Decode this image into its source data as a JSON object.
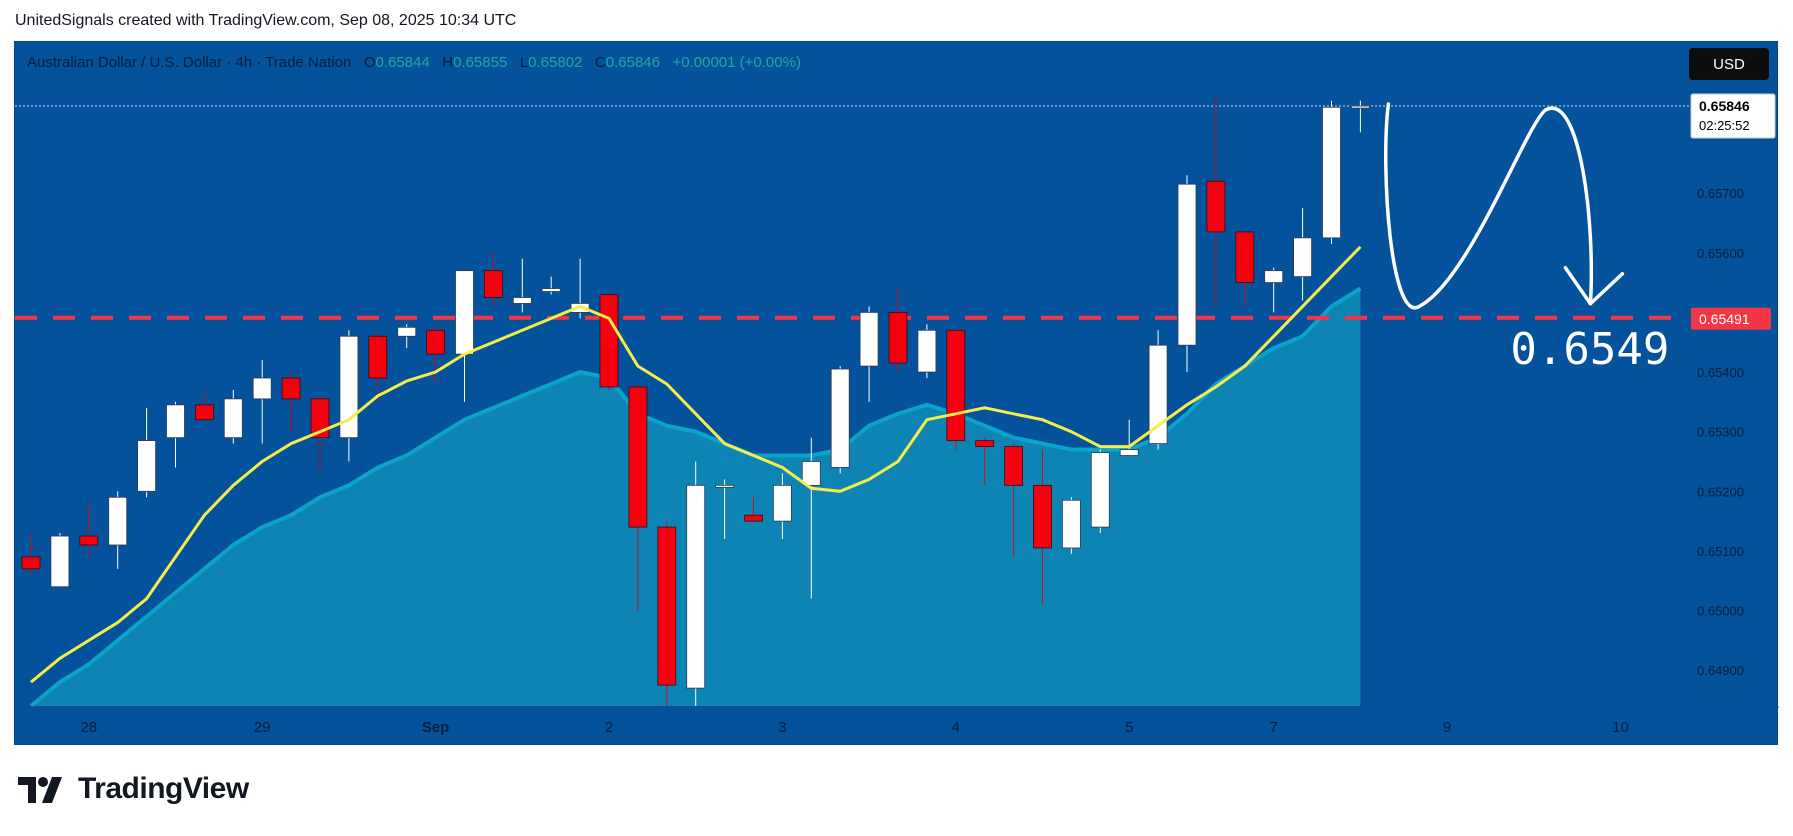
{
  "caption": "UnitedSignals created with TradingView.com, Sep 08, 2025 10:34 UTC",
  "brand": {
    "name": "TradingView",
    "logo_icon": "tradingview-logo-icon"
  },
  "legend": {
    "symbol": "Australian Dollar / U.S. Dollar · 4h · Trade Nation",
    "o_label": "O",
    "o": "0.65844",
    "h_label": "H",
    "h": "0.65855",
    "l_label": "L",
    "l": "0.65802",
    "c_label": "C",
    "c": "0.65846",
    "change": "+0.00001 (+0.00%)"
  },
  "currency": "USD",
  "colors": {
    "background": "#04529c",
    "bull": "#ffffff",
    "bear": "#f5000e",
    "ma_fast": "#f4ee4a",
    "ma_slow_area": "#0aa3c9",
    "level_line": "#f23645"
  },
  "chart_data": {
    "type": "candlestick",
    "timeframe": "4h",
    "y_axis": {
      "range": [
        0.6484,
        0.6594
      ],
      "ticks": [
        "0.65700",
        "0.65600",
        "0.65400",
        "0.65300",
        "0.65200",
        "0.65100",
        "0.65000",
        "0.64900"
      ]
    },
    "x_axis": {
      "labels": [
        {
          "label": "28",
          "index": 2
        },
        {
          "label": "29",
          "index": 8
        },
        {
          "label": "Sep",
          "index": 14
        },
        {
          "label": "2",
          "index": 20
        },
        {
          "label": "3",
          "index": 26
        },
        {
          "label": "4",
          "index": 32
        },
        {
          "label": "5",
          "index": 38
        },
        {
          "label": "7",
          "index": 43
        },
        {
          "label": "9",
          "index": 49
        },
        {
          "label": "10",
          "index": 55
        }
      ]
    },
    "candles": [
      {
        "o": 0.6509,
        "h": 0.6513,
        "l": 0.6506,
        "c": 0.6507
      },
      {
        "o": 0.6504,
        "h": 0.6513,
        "l": 0.6504,
        "c": 0.65125
      },
      {
        "o": 0.65125,
        "h": 0.6518,
        "l": 0.6509,
        "c": 0.6511
      },
      {
        "o": 0.6511,
        "h": 0.652,
        "l": 0.6507,
        "c": 0.6519
      },
      {
        "o": 0.652,
        "h": 0.6534,
        "l": 0.6519,
        "c": 0.65285
      },
      {
        "o": 0.6529,
        "h": 0.6535,
        "l": 0.6524,
        "c": 0.65345
      },
      {
        "o": 0.65345,
        "h": 0.6537,
        "l": 0.6532,
        "c": 0.6532
      },
      {
        "o": 0.6529,
        "h": 0.6537,
        "l": 0.6528,
        "c": 0.65355
      },
      {
        "o": 0.65355,
        "h": 0.6542,
        "l": 0.6528,
        "c": 0.6539
      },
      {
        "o": 0.6539,
        "h": 0.654,
        "l": 0.653,
        "c": 0.65355
      },
      {
        "o": 0.65355,
        "h": 0.6536,
        "l": 0.6523,
        "c": 0.6529
      },
      {
        "o": 0.6529,
        "h": 0.6547,
        "l": 0.6525,
        "c": 0.6546
      },
      {
        "o": 0.6546,
        "h": 0.6547,
        "l": 0.6535,
        "c": 0.6539
      },
      {
        "o": 0.6546,
        "h": 0.6548,
        "l": 0.6544,
        "c": 0.65475
      },
      {
        "o": 0.6547,
        "h": 0.6548,
        "l": 0.6538,
        "c": 0.6543
      },
      {
        "o": 0.6543,
        "h": 0.6557,
        "l": 0.6535,
        "c": 0.6557
      },
      {
        "o": 0.6557,
        "h": 0.656,
        "l": 0.6551,
        "c": 0.65525
      },
      {
        "o": 0.65515,
        "h": 0.6559,
        "l": 0.655,
        "c": 0.65525
      },
      {
        "o": 0.65535,
        "h": 0.6556,
        "l": 0.6553,
        "c": 0.6554
      },
      {
        "o": 0.655,
        "h": 0.6559,
        "l": 0.6549,
        "c": 0.65515
      },
      {
        "o": 0.6553,
        "h": 0.6553,
        "l": 0.6537,
        "c": 0.65375
      },
      {
        "o": 0.65375,
        "h": 0.6538,
        "l": 0.65,
        "c": 0.6514
      },
      {
        "o": 0.6514,
        "h": 0.6515,
        "l": 0.6484,
        "c": 0.64875
      },
      {
        "o": 0.6487,
        "h": 0.6525,
        "l": 0.6484,
        "c": 0.6521
      },
      {
        "o": 0.6521,
        "h": 0.6522,
        "l": 0.6512,
        "c": 0.6521
      },
      {
        "o": 0.6516,
        "h": 0.6519,
        "l": 0.6515,
        "c": 0.6515
      },
      {
        "o": 0.6515,
        "h": 0.6523,
        "l": 0.6512,
        "c": 0.6521
      },
      {
        "o": 0.6521,
        "h": 0.6529,
        "l": 0.6502,
        "c": 0.6525
      },
      {
        "o": 0.6524,
        "h": 0.6541,
        "l": 0.6523,
        "c": 0.65405
      },
      {
        "o": 0.6541,
        "h": 0.6551,
        "l": 0.6535,
        "c": 0.655
      },
      {
        "o": 0.655,
        "h": 0.6554,
        "l": 0.654,
        "c": 0.65415
      },
      {
        "o": 0.654,
        "h": 0.6548,
        "l": 0.6539,
        "c": 0.6547
      },
      {
        "o": 0.6547,
        "h": 0.6547,
        "l": 0.6527,
        "c": 0.65285
      },
      {
        "o": 0.65285,
        "h": 0.6529,
        "l": 0.6521,
        "c": 0.65275
      },
      {
        "o": 0.65275,
        "h": 0.6528,
        "l": 0.6509,
        "c": 0.6521
      },
      {
        "o": 0.6521,
        "h": 0.6527,
        "l": 0.6501,
        "c": 0.65105
      },
      {
        "o": 0.65105,
        "h": 0.6519,
        "l": 0.65095,
        "c": 0.65185
      },
      {
        "o": 0.6514,
        "h": 0.6527,
        "l": 0.6513,
        "c": 0.65265
      },
      {
        "o": 0.6526,
        "h": 0.6532,
        "l": 0.6526,
        "c": 0.6527
      },
      {
        "o": 0.6528,
        "h": 0.6547,
        "l": 0.6527,
        "c": 0.65445
      },
      {
        "o": 0.65445,
        "h": 0.6573,
        "l": 0.654,
        "c": 0.65715
      },
      {
        "o": 0.6572,
        "h": 0.6586,
        "l": 0.6551,
        "c": 0.65635
      },
      {
        "o": 0.65635,
        "h": 0.65635,
        "l": 0.6551,
        "c": 0.6555
      },
      {
        "o": 0.6555,
        "h": 0.65575,
        "l": 0.655,
        "c": 0.6557
      },
      {
        "o": 0.6556,
        "h": 0.65675,
        "l": 0.6552,
        "c": 0.65625
      },
      {
        "o": 0.65625,
        "h": 0.65855,
        "l": 0.65615,
        "c": 0.65844
      },
      {
        "o": 0.65844,
        "h": 0.65855,
        "l": 0.65802,
        "c": 0.65846
      }
    ],
    "ma_fast": [
      0.6488,
      0.6492,
      0.6495,
      0.6498,
      0.6502,
      0.6509,
      0.6516,
      0.6521,
      0.6525,
      0.6528,
      0.653,
      0.6532,
      0.6536,
      0.65385,
      0.654,
      0.6543,
      0.6545,
      0.6547,
      0.6549,
      0.6551,
      0.6549,
      0.6541,
      0.6538,
      0.6533,
      0.6528,
      0.6526,
      0.6524,
      0.65205,
      0.652,
      0.6522,
      0.6525,
      0.6532,
      0.6533,
      0.6534,
      0.6533,
      0.6532,
      0.653,
      0.65275,
      0.65275,
      0.6531,
      0.65345,
      0.65375,
      0.6541,
      0.6546,
      0.6551,
      0.6556,
      0.6561
    ],
    "ma_slow": [
      0.6484,
      0.6488,
      0.6491,
      0.6495,
      0.6499,
      0.6503,
      0.6507,
      0.6511,
      0.6514,
      0.6516,
      0.6519,
      0.6521,
      0.6524,
      0.6526,
      0.6529,
      0.6532,
      0.6534,
      0.6536,
      0.6538,
      0.654,
      0.6539,
      0.6533,
      0.6531,
      0.653,
      0.6528,
      0.6526,
      0.6526,
      0.6526,
      0.6527,
      0.6531,
      0.6533,
      0.65345,
      0.6533,
      0.6531,
      0.6529,
      0.6528,
      0.6527,
      0.6527,
      0.6527,
      0.6529,
      0.6533,
      0.6538,
      0.6541,
      0.6544,
      0.6546,
      0.6551,
      0.6554
    ],
    "price_now": {
      "value": 0.65846,
      "label": "0.65846",
      "countdown": "02:25:52"
    },
    "level_line": {
      "value": 0.65491,
      "label": "0.65491"
    },
    "annotation": {
      "text": "0.6549"
    }
  }
}
